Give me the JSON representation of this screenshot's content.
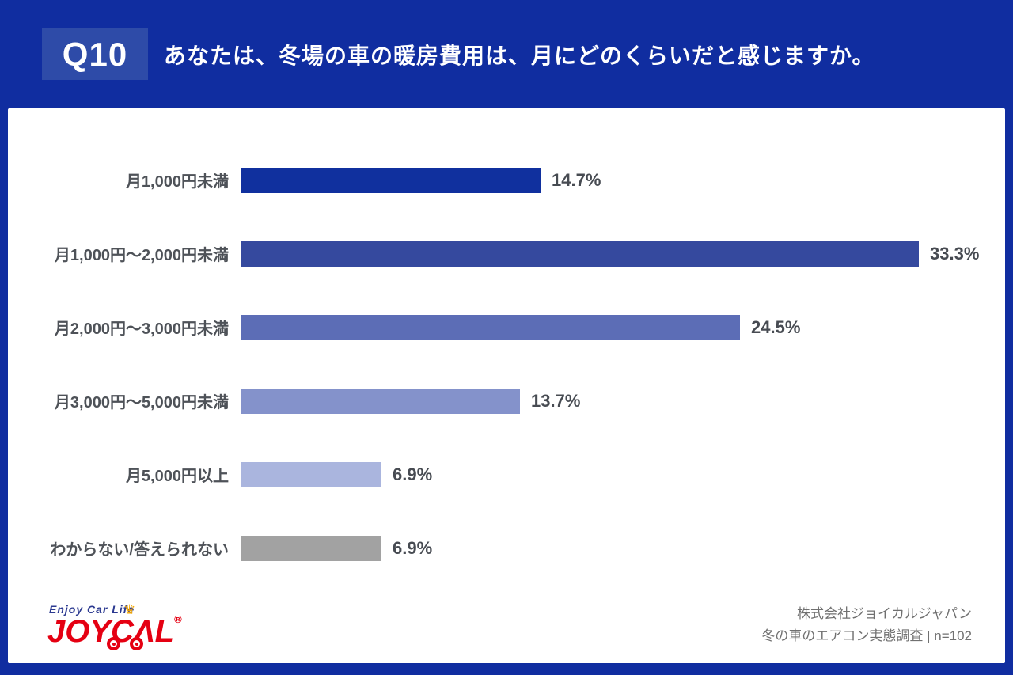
{
  "header": {
    "badge": "Q10",
    "question": "あなたは、冬場の車の暖房費用は、月にどのくらいだと感じますか。"
  },
  "chart_data": {
    "type": "bar",
    "orientation": "horizontal",
    "title": "あなたは、冬場の車の暖房費用は、月にどのくらいだと感じますか。",
    "categories": [
      "月1,000円未満",
      "月1,000円〜2,000円未満",
      "月2,000円〜3,000円未満",
      "月3,000円〜5,000円未満",
      "月5,000円以上",
      "わからない/答えられない"
    ],
    "values": [
      14.7,
      33.3,
      24.5,
      13.7,
      6.9,
      6.9
    ],
    "value_suffix": "%",
    "bar_colors": [
      "#10309e",
      "#35499e",
      "#5c6db6",
      "#8492cb",
      "#aab5de",
      "#a2a2a2"
    ],
    "xmax_percent": 33.3,
    "legend": "none",
    "grid": "off",
    "sample_size_note": "n=102"
  },
  "footer": {
    "logo": {
      "tagline": "Enjoy Car Life",
      "brand_left": "JOYC",
      "brand_a": "Λ",
      "brand_right": "L",
      "registered": "®"
    },
    "company": "株式会社ジョイカルジャパン",
    "survey": "冬の車のエアコン実態調査 | n=102"
  },
  "colors": {
    "background": "#102da0",
    "badge_background": "#2e4ba8",
    "panel_background": "#ffffff",
    "label_text": "#4e5258",
    "value_text": "#474b52",
    "credit_text": "#707070",
    "logo_red": "#e50012",
    "logo_blue": "#2b3990",
    "crown_yellow": "#f5a800"
  }
}
